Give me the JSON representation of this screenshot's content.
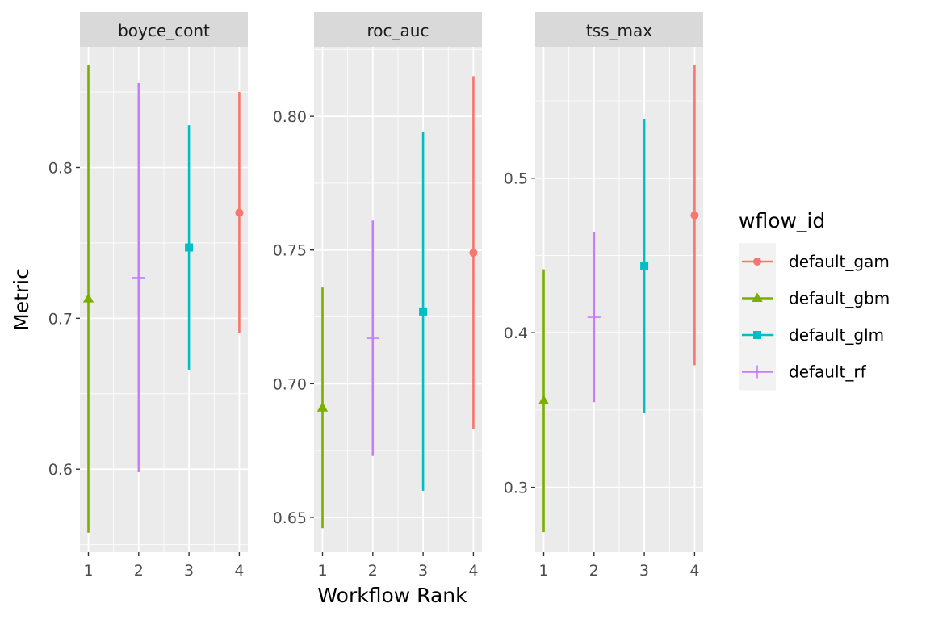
{
  "chart_data": {
    "type": "errorbar",
    "xlabel": "Workflow Rank",
    "ylabel": "Metric",
    "x_ticks": [
      1,
      2,
      3,
      4
    ],
    "legend": {
      "title": "wflow_id",
      "placement": "right",
      "items": [
        {
          "label": "default_gam",
          "color": "#F8766D",
          "shape": "circle"
        },
        {
          "label": "default_gbm",
          "color": "#7CAE00",
          "shape": "triangle"
        },
        {
          "label": "default_glm",
          "color": "#00BFC4",
          "shape": "square"
        },
        {
          "label": "default_rf",
          "color": "#C77CFF",
          "shape": "plus"
        }
      ]
    },
    "panels": [
      {
        "name": "boyce_cont",
        "ylim": [
          0.545,
          0.88
        ],
        "y_ticks": [
          0.6,
          0.7,
          0.8
        ],
        "y_tick_labels": [
          "0.6",
          "0.7",
          "0.8"
        ],
        "points": [
          {
            "rank": 1,
            "wflow": "default_gbm",
            "mean": 0.713,
            "lower": 0.558,
            "upper": 0.868
          },
          {
            "rank": 2,
            "wflow": "default_rf",
            "mean": 0.727,
            "lower": 0.598,
            "upper": 0.856
          },
          {
            "rank": 3,
            "wflow": "default_glm",
            "mean": 0.747,
            "lower": 0.666,
            "upper": 0.828
          },
          {
            "rank": 4,
            "wflow": "default_gam",
            "mean": 0.77,
            "lower": 0.69,
            "upper": 0.85
          }
        ]
      },
      {
        "name": "roc_auc",
        "ylim": [
          0.637,
          0.826
        ],
        "y_ticks": [
          0.65,
          0.7,
          0.75,
          0.8
        ],
        "y_tick_labels": [
          "0.65",
          "0.70",
          "0.75",
          "0.80"
        ],
        "points": [
          {
            "rank": 1,
            "wflow": "default_gbm",
            "mean": 0.691,
            "lower": 0.646,
            "upper": 0.736
          },
          {
            "rank": 2,
            "wflow": "default_rf",
            "mean": 0.717,
            "lower": 0.673,
            "upper": 0.761
          },
          {
            "rank": 3,
            "wflow": "default_glm",
            "mean": 0.727,
            "lower": 0.66,
            "upper": 0.794
          },
          {
            "rank": 4,
            "wflow": "default_gam",
            "mean": 0.749,
            "lower": 0.683,
            "upper": 0.815
          }
        ]
      },
      {
        "name": "tss_max",
        "ylim": [
          0.258,
          0.585
        ],
        "y_ticks": [
          0.3,
          0.4,
          0.5
        ],
        "y_tick_labels": [
          "0.3",
          "0.4",
          "0.5"
        ],
        "points": [
          {
            "rank": 1,
            "wflow": "default_gbm",
            "mean": 0.356,
            "lower": 0.271,
            "upper": 0.441
          },
          {
            "rank": 2,
            "wflow": "default_rf",
            "mean": 0.41,
            "lower": 0.355,
            "upper": 0.465
          },
          {
            "rank": 3,
            "wflow": "default_glm",
            "mean": 0.443,
            "lower": 0.348,
            "upper": 0.538
          },
          {
            "rank": 4,
            "wflow": "default_gam",
            "mean": 0.476,
            "lower": 0.379,
            "upper": 0.573
          }
        ]
      }
    ]
  }
}
